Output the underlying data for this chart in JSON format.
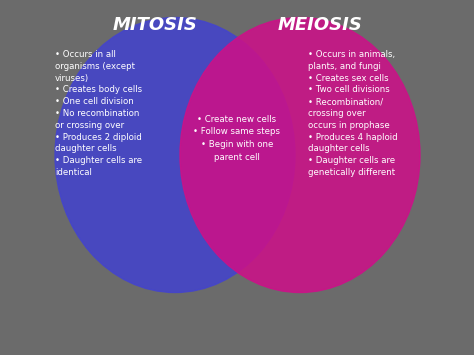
{
  "background_color": "#6b6b6b",
  "title_mitosis": "MITOSIS",
  "title_meiosis": "MEIOSIS",
  "title_color": "white",
  "title_fontsize": 13,
  "circle_mitosis_color": "#4444cc",
  "circle_meiosis_color": "#cc1188",
  "circle_alpha": 0.88,
  "mitosis_points": [
    "Occurs in all\norganisms (except\nviruses)",
    "Creates body cells",
    "One cell division",
    "No recombination\nor crossing over",
    "Produces 2 diploid\ndaughter cells",
    "Daughter cells are\nidentical"
  ],
  "meiosis_points": [
    "Occurs in animals,\nplants, and fungi",
    "Creates sex cells",
    "Two cell divisions",
    "Recombination/\ncrossing over\noccurs in prophase",
    "Produces 4 haploid\ndaughter cells",
    "Daughter cells are\ngenetically different"
  ],
  "shared_points": [
    "Create new cells",
    "Follow same steps",
    "Begin with one\nparent cell"
  ],
  "text_color": "white",
  "text_fontsize": 6.2,
  "bullet": "• "
}
